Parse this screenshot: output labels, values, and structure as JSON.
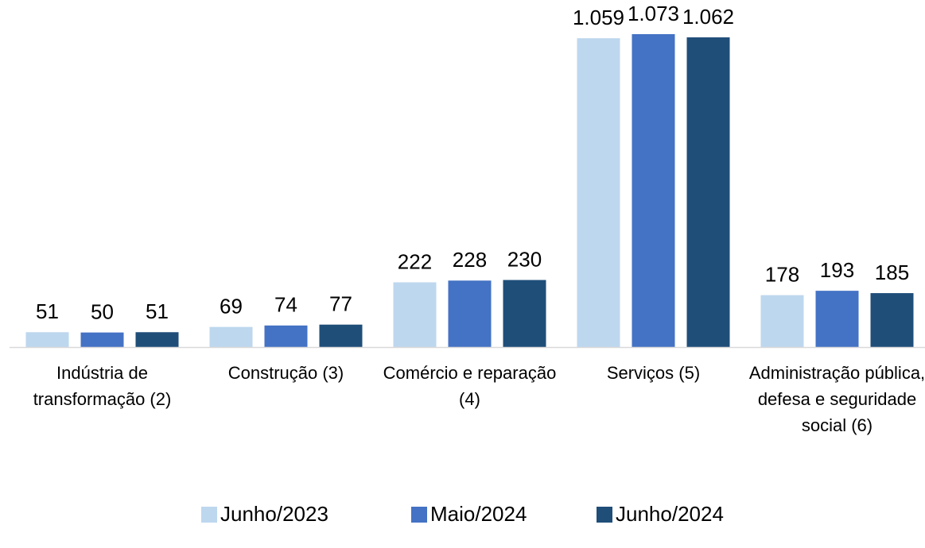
{
  "chart_data": {
    "type": "bar",
    "categories": [
      "Indústria de transformação (2)",
      "Construção (3)",
      "Comércio e reparação (4)",
      "Serviços (5)",
      "Administração pública, defesa e seguridade social (6)"
    ],
    "series": [
      {
        "name": "Junho/2023",
        "color": "#bdd7ee",
        "values": [
          51,
          69,
          222,
          1059,
          178
        ],
        "value_labels": [
          "51",
          "69",
          "222",
          "1.059",
          "178"
        ]
      },
      {
        "name": "Maio/2024",
        "color": "#4472c4",
        "values": [
          50,
          74,
          228,
          1073,
          193
        ],
        "value_labels": [
          "50",
          "74",
          "228",
          "1.073",
          "193"
        ]
      },
      {
        "name": "Junho/2024",
        "color": "#1f4e79",
        "values": [
          51,
          77,
          230,
          1062,
          185
        ],
        "value_labels": [
          "51",
          "77",
          "230",
          "1.062",
          "185"
        ]
      }
    ],
    "legend": "bottom"
  }
}
